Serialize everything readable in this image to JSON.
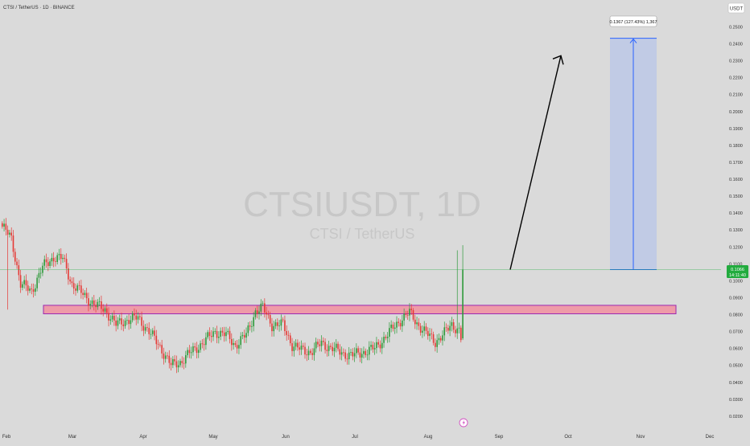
{
  "header": {
    "symbol_line": "CTSI / TetherUS · 1D · BINANCE"
  },
  "currency_badge": "USDT",
  "watermark": {
    "ticker": "CTSIUSDT, 1D",
    "name": "CTSI / TetherUS"
  },
  "price_label": {
    "price": "0.1066",
    "countdown": "14:11:40"
  },
  "measure_label": "0.1367 (127.43%) 1,367",
  "colors": {
    "background": "#dadada",
    "up": "#26a69a",
    "down": "#ef5350",
    "up_candle": "#2e9a3a",
    "down_candle": "#e53935",
    "current_price": "#22ab3e",
    "zone_fill": "#f28b9b",
    "zone_border": "#9c27b0",
    "measure_fill": "#bcc8e6",
    "measure_line": "#2962ff",
    "arrow": "#000000",
    "axis_text": "#333333"
  },
  "icons": {
    "event_marker": "lightning-icon"
  },
  "chart_data": {
    "type": "candlestick",
    "yscale": "linear",
    "ylim": [
      0.015,
      0.26
    ],
    "y_ticks": [
      "0.0200",
      "0.0300",
      "0.0400",
      "0.0500",
      "0.0600",
      "0.0700",
      "0.0800",
      "0.0900",
      "0.1000",
      "0.1100",
      "0.1200",
      "0.1300",
      "0.1400",
      "0.1500",
      "0.1600",
      "0.1700",
      "0.1800",
      "0.1900",
      "0.2000",
      "0.2100",
      "0.2200",
      "0.2300",
      "0.2400",
      "0.2500"
    ],
    "x_ticks": [
      "Feb",
      "Mar",
      "Apr",
      "May",
      "Jun",
      "Jul",
      "Aug",
      "Sep",
      "Oct",
      "Nov",
      "Dec"
    ],
    "anchors": [
      [
        0,
        0.132
      ],
      [
        5,
        0.125
      ],
      [
        10,
        0.098
      ],
      [
        16,
        0.094
      ],
      [
        22,
        0.108
      ],
      [
        28,
        0.114
      ],
      [
        33,
        0.113
      ],
      [
        38,
        0.098
      ],
      [
        44,
        0.092
      ],
      [
        50,
        0.086
      ],
      [
        56,
        0.083
      ],
      [
        62,
        0.074
      ],
      [
        68,
        0.077
      ],
      [
        74,
        0.078
      ],
      [
        80,
        0.07
      ],
      [
        86,
        0.061
      ],
      [
        92,
        0.05
      ],
      [
        97,
        0.052
      ],
      [
        103,
        0.058
      ],
      [
        110,
        0.064
      ],
      [
        116,
        0.07
      ],
      [
        122,
        0.068
      ],
      [
        127,
        0.062
      ],
      [
        133,
        0.068
      ],
      [
        138,
        0.082
      ],
      [
        142,
        0.084
      ],
      [
        147,
        0.074
      ],
      [
        153,
        0.074
      ],
      [
        158,
        0.062
      ],
      [
        163,
        0.059
      ],
      [
        168,
        0.058
      ],
      [
        174,
        0.063
      ],
      [
        180,
        0.06
      ],
      [
        186,
        0.057
      ],
      [
        191,
        0.056
      ],
      [
        197,
        0.058
      ],
      [
        203,
        0.06
      ],
      [
        208,
        0.066
      ],
      [
        213,
        0.072
      ],
      [
        218,
        0.078
      ],
      [
        222,
        0.081
      ],
      [
        226,
        0.075
      ],
      [
        231,
        0.069
      ],
      [
        236,
        0.064
      ],
      [
        241,
        0.069
      ],
      [
        245,
        0.074
      ],
      [
        249,
        0.071
      ],
      [
        250,
        0.066
      ],
      [
        251,
        0.1066
      ]
    ],
    "candles": 252,
    "last_candle": {
      "open": 0.066,
      "high": 0.121,
      "low": 0.065,
      "close": 0.1066
    },
    "current_price": 0.1066,
    "zone": {
      "low": 0.0805,
      "high": 0.0855
    },
    "measure": {
      "from": 0.1066,
      "to": 0.2433,
      "change": "0.1367 (127.43%)"
    },
    "arrow": {
      "from": 0.1066,
      "to": 0.233
    }
  }
}
